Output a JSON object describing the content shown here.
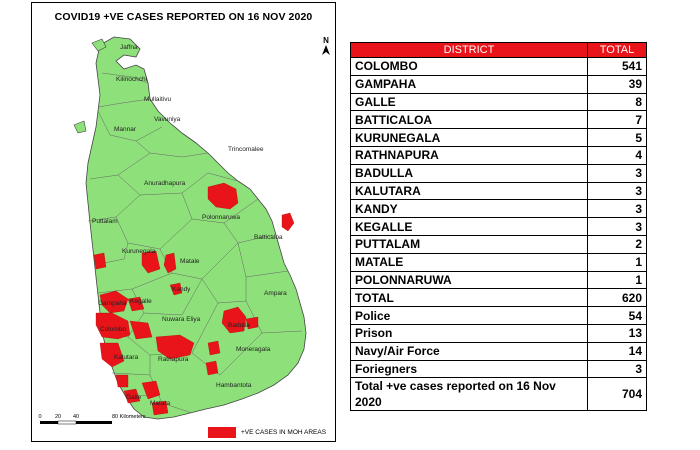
{
  "map": {
    "title": "COVID19 +VE CASES REPORTED ON 16 NOV 2020",
    "north_label": "N",
    "scale": {
      "ticks": [
        "0",
        "20",
        "40",
        "80 Kilometers"
      ]
    },
    "legend_label": "+VE CASES IN MOH AREAS",
    "colors": {
      "land": "#8ee07a",
      "cases": "#e8141a",
      "border": "#444444"
    },
    "district_labels": [
      "Jaffna",
      "Kilinochchi",
      "Mullaitivu",
      "Mannar",
      "Vavuniya",
      "Trincomalee",
      "Anuradhapura",
      "Polonnaruwa",
      "Puttalam",
      "Batticaloa",
      "Kurunegala",
      "Matale",
      "Kandy",
      "Gampaha",
      "Kegalle",
      "Ampara",
      "Colombo",
      "Nuwara Eliya",
      "Badulla",
      "Kalutara",
      "Ratnapura",
      "Moneragala",
      "Hambantota",
      "Galle",
      "Matara"
    ]
  },
  "table": {
    "header": {
      "district": "DISTRICT",
      "total": "TOTAL"
    },
    "rows": [
      {
        "district": "COLOMBO",
        "total": "541"
      },
      {
        "district": "GAMPAHA",
        "total": "39"
      },
      {
        "district": "GALLE",
        "total": "8"
      },
      {
        "district": "BATTICALOA",
        "total": "7"
      },
      {
        "district": "KURUNEGALA",
        "total": "5"
      },
      {
        "district": "RATHNAPURA",
        "total": "4"
      },
      {
        "district": "BADULLA",
        "total": "3"
      },
      {
        "district": "KALUTARA",
        "total": "3"
      },
      {
        "district": "KANDY",
        "total": "3"
      },
      {
        "district": "KEGALLE",
        "total": "3"
      },
      {
        "district": "PUTTALAM",
        "total": "2"
      },
      {
        "district": "MATALE",
        "total": "1"
      },
      {
        "district": "POLONNARUWA",
        "total": "1"
      }
    ],
    "total_row": {
      "district": "TOTAL",
      "total": "620"
    },
    "extra_rows": [
      {
        "district": "Police",
        "total": "54"
      },
      {
        "district": "Prison",
        "total": "13"
      },
      {
        "district": "Navy/Air Force",
        "total": "14"
      },
      {
        "district": "Foriegners",
        "total": "3"
      }
    ],
    "grand_total_row": {
      "district": "Total +ve cases reported on 16 Nov 2020",
      "total": "704"
    }
  }
}
